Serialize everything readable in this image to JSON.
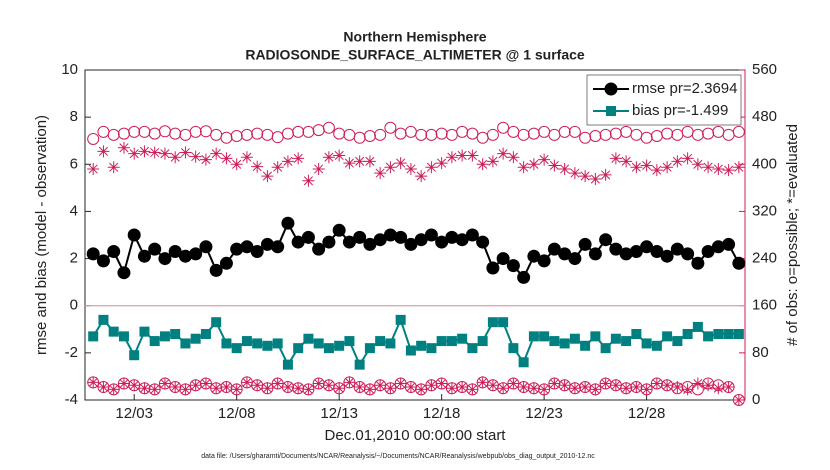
{
  "chart_data": {
    "type": "line",
    "title": "Northern Hemisphere",
    "subtitle": "RADIOSONDE_SURFACE_ALTIMETER @ 1 surface",
    "xlabel": "Dec.01,2010 00:00:00 start",
    "ylabel": "rmse and bias (model - observation)",
    "y2label": "# of obs: o=possible; *=evaluated",
    "footnote": "data file: /Users/gharamti/Documents/NCAR/Reanalysis/~/Documents/NCAR/Reanalysis/webpub/obs_diag_output_2010-12.nc",
    "xlim": [
      0.6,
      32.8
    ],
    "xticks": [
      {
        "value": 3,
        "label": "12/03"
      },
      {
        "value": 8,
        "label": "12/08"
      },
      {
        "value": 13,
        "label": "12/13"
      },
      {
        "value": 18,
        "label": "12/18"
      },
      {
        "value": 23,
        "label": "12/23"
      },
      {
        "value": 28,
        "label": "12/28"
      }
    ],
    "ylim": [
      -4,
      10
    ],
    "yticks": [
      -4,
      -2,
      0,
      2,
      4,
      6,
      8,
      10
    ],
    "y2lim": [
      0,
      560
    ],
    "y2ticks": [
      0,
      80,
      160,
      240,
      320,
      400,
      480,
      560
    ],
    "y2color": "#cc1e5a",
    "hline": 0,
    "legend": "upper right",
    "x": [
      1,
      1.5,
      2,
      2.5,
      3,
      3.5,
      4,
      4.5,
      5,
      5.5,
      6,
      6.5,
      7,
      7.5,
      8,
      8.5,
      9,
      9.5,
      10,
      10.5,
      11,
      11.5,
      12,
      12.5,
      13,
      13.5,
      14,
      14.5,
      15,
      15.5,
      16,
      16.5,
      17,
      17.5,
      18,
      18.5,
      19,
      19.5,
      20,
      20.5,
      21,
      21.5,
      22,
      22.5,
      23,
      23.5,
      24,
      24.5,
      25,
      25.5,
      26,
      26.5,
      27,
      27.5,
      28,
      28.5,
      29,
      29.5,
      30,
      30.5,
      31,
      31.5,
      32,
      32.5
    ],
    "series": [
      {
        "name": "rmse pr=2.3694",
        "color": "#000000",
        "marker": "circle-filled",
        "line": true,
        "values": [
          2.2,
          1.9,
          2.3,
          1.4,
          3.0,
          2.1,
          2.4,
          2.0,
          2.3,
          2.1,
          2.2,
          2.5,
          1.5,
          1.8,
          2.4,
          2.5,
          2.3,
          2.6,
          2.5,
          3.5,
          2.7,
          2.9,
          2.4,
          2.7,
          3.2,
          2.7,
          2.9,
          2.6,
          2.8,
          3.0,
          2.9,
          2.6,
          2.8,
          3.0,
          2.7,
          2.9,
          2.8,
          3.0,
          2.7,
          1.6,
          2.0,
          1.7,
          1.2,
          2.1,
          1.9,
          2.4,
          2.2,
          2.0,
          2.6,
          2.2,
          2.8,
          2.4,
          2.2,
          2.3,
          2.5,
          2.3,
          2.1,
          2.4,
          2.2,
          1.8,
          2.3,
          2.5,
          2.6,
          1.8
        ]
      },
      {
        "name": "bias pr=-1.499",
        "color": "#008080",
        "marker": "square-filled",
        "line": true,
        "values": [
          -1.3,
          -0.6,
          -1.1,
          -1.3,
          -2.1,
          -1.1,
          -1.5,
          -1.3,
          -1.2,
          -1.6,
          -1.4,
          -1.2,
          -0.7,
          -1.6,
          -1.8,
          -1.5,
          -1.6,
          -1.7,
          -1.6,
          -2.5,
          -1.8,
          -1.4,
          -1.6,
          -1.8,
          -1.7,
          -1.5,
          -2.5,
          -1.8,
          -1.5,
          -1.6,
          -0.6,
          -1.9,
          -1.7,
          -1.8,
          -1.5,
          -1.5,
          -1.4,
          -1.8,
          -1.5,
          -0.7,
          -0.7,
          -1.8,
          -2.4,
          -1.3,
          -1.3,
          -1.5,
          -1.6,
          -1.4,
          -1.7,
          -1.3,
          -1.8,
          -1.4,
          -1.5,
          -1.2,
          -1.6,
          -1.7,
          -1.3,
          -1.5,
          -1.2,
          -0.9,
          -1.3,
          -1.2,
          -1.2,
          -1.2
        ]
      },
      {
        "color": "#cc1e5a",
        "marker": "circle-open",
        "line": false,
        "axis": "y2",
        "values": [
          443,
          455,
          450,
          452,
          455,
          455,
          452,
          456,
          452,
          450,
          455,
          456,
          450,
          445,
          448,
          450,
          452,
          450,
          446,
          452,
          455,
          455,
          458,
          462,
          452,
          450,
          445,
          448,
          450,
          462,
          452,
          455,
          450,
          450,
          452,
          450,
          455,
          452,
          445,
          450,
          462,
          455,
          450,
          452,
          455,
          450,
          455,
          455,
          445,
          448,
          450,
          452,
          455,
          450,
          445,
          448,
          452,
          450,
          455,
          450,
          452,
          455,
          450,
          455
        ]
      },
      {
        "color": "#cc1e5a",
        "marker": "asterisk",
        "line": false,
        "axis": "y2",
        "values": [
          392,
          422,
          395,
          428,
          418,
          422,
          420,
          418,
          412,
          420,
          413,
          408,
          418,
          410,
          400,
          412,
          396,
          380,
          395,
          405,
          410,
          372,
          392,
          412,
          415,
          402,
          405,
          405,
          385,
          395,
          402,
          392,
          380,
          395,
          402,
          412,
          415,
          415,
          400,
          405,
          418,
          412,
          395,
          400,
          408,
          398,
          392,
          385,
          380,
          375,
          382,
          410,
          405,
          395,
          398,
          390,
          395,
          405,
          410,
          400,
          395,
          392,
          390,
          395
        ]
      },
      {
        "color": "#cc1e5a",
        "marker": "circle-open",
        "line": false,
        "axis": "y2",
        "values": [
          30,
          22,
          18,
          28,
          25,
          20,
          18,
          28,
          22,
          18,
          25,
          28,
          20,
          22,
          18,
          30,
          25,
          20,
          28,
          22,
          20,
          18,
          28,
          25,
          20,
          30,
          22,
          18,
          25,
          20,
          28,
          22,
          18,
          25,
          28,
          20,
          22,
          18,
          30,
          25,
          20,
          28,
          22,
          20,
          18,
          28,
          25,
          20,
          22,
          18,
          28,
          25,
          20,
          22,
          18,
          28,
          25,
          20,
          22,
          18,
          28,
          25,
          22,
          0
        ]
      },
      {
        "color": "#cc1e5a",
        "marker": "asterisk",
        "line": false,
        "axis": "y2",
        "values": [
          30,
          22,
          18,
          28,
          25,
          20,
          18,
          28,
          22,
          18,
          25,
          28,
          20,
          22,
          18,
          30,
          25,
          20,
          28,
          22,
          20,
          18,
          28,
          25,
          20,
          30,
          22,
          18,
          25,
          20,
          28,
          22,
          18,
          25,
          28,
          20,
          22,
          18,
          30,
          25,
          20,
          28,
          22,
          20,
          18,
          28,
          25,
          20,
          22,
          18,
          28,
          25,
          20,
          22,
          18,
          28,
          25,
          22,
          18,
          28,
          25,
          20,
          22,
          0
        ]
      }
    ]
  }
}
